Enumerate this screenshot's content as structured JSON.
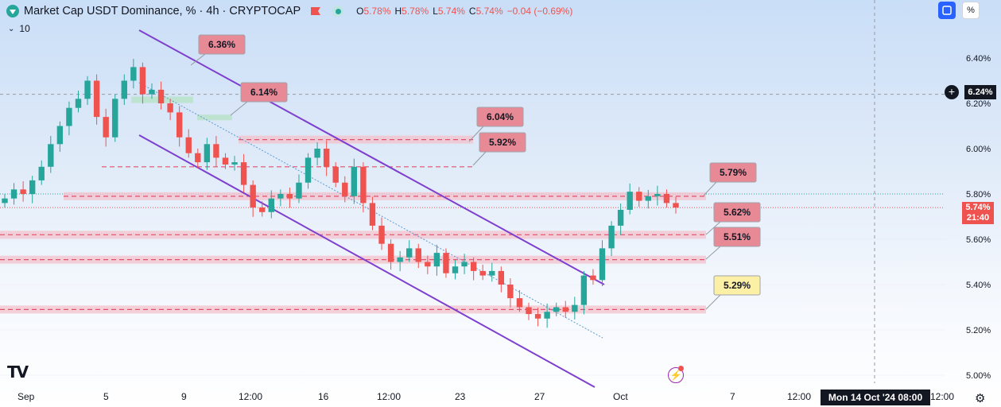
{
  "header": {
    "title": "Market Cap USDT Dominance, % · 4h · CRYPTOCAP",
    "ohlc": [
      {
        "k": "O",
        "v": "5.78%"
      },
      {
        "k": "H",
        "v": "5.78%"
      },
      {
        "k": "L",
        "v": "5.74%"
      },
      {
        "k": "C",
        "v": "5.74%"
      },
      {
        "k": "",
        "v": "−0.04 (−0.69%)"
      }
    ],
    "volume_label": "10"
  },
  "toolbar": {
    "percent_label": "%"
  },
  "icons": {
    "symbol": "tether-logo-icon",
    "flag": "flag-icon",
    "live": "live-dot-icon",
    "sync": "sync-icon",
    "settings": "gear-icon",
    "bolt": "lightning-icon"
  },
  "colors": {
    "up": "#26a69a",
    "down": "#ef5350",
    "channel": "#7e3fcf",
    "zone": "#f3c1cc",
    "zone_line": "#e0506a",
    "callout": "#e88a96",
    "callout_yellow": "#fbf0a6",
    "last_price": "#ef5350",
    "crosshair_badge": "#131722"
  },
  "crosshair": {
    "price_label": "6.24%",
    "time_label": "Mon 14 Oct '24   08:00"
  },
  "last_price": {
    "value": "5.74%",
    "countdown": "21:40"
  },
  "chart_data": {
    "type": "candlestick",
    "title": "Market Cap USDT Dominance, % · 4h · CRYPTOCAP",
    "y_unit": "%",
    "ylim": [
      4.95,
      6.58
    ],
    "y_ticks": [
      "6.40%",
      "6.20%",
      "6.00%",
      "5.80%",
      "5.60%",
      "5.40%",
      "5.20%",
      "5.00%"
    ],
    "x_ticks": [
      "Sep",
      "5",
      "9",
      "12:00",
      "16",
      "12:00",
      "23",
      "27",
      "Oct",
      "7",
      "12:00",
      "12:00"
    ],
    "series_close": [
      5.78,
      5.82,
      5.8,
      5.86,
      5.92,
      6.02,
      6.1,
      6.18,
      6.22,
      6.3,
      6.14,
      6.05,
      6.22,
      6.3,
      6.36,
      6.24,
      6.26,
      6.2,
      6.16,
      6.05,
      5.98,
      5.94,
      6.02,
      5.96,
      5.93,
      5.94,
      5.84,
      5.74,
      5.72,
      5.78,
      5.8,
      5.78,
      5.85,
      5.96,
      6.0,
      5.92,
      5.85,
      5.79,
      5.92,
      5.76,
      5.66,
      5.58,
      5.5,
      5.52,
      5.56,
      5.5,
      5.48,
      5.54,
      5.45,
      5.48,
      5.5,
      5.46,
      5.44,
      5.46,
      5.4,
      5.34,
      5.3,
      5.27,
      5.25,
      5.28,
      5.3,
      5.28,
      5.31,
      5.44,
      5.42,
      5.56,
      5.66,
      5.73,
      5.81,
      5.77,
      5.79,
      5.8,
      5.76,
      5.74
    ],
    "levels": [
      {
        "label": "6.36%",
        "value": 6.36,
        "style": "callout"
      },
      {
        "label": "6.14%",
        "value": 6.14,
        "style": "callout"
      },
      {
        "label": "6.04%",
        "value": 6.04,
        "style": "zone"
      },
      {
        "label": "5.92%",
        "value": 5.92,
        "style": "line"
      },
      {
        "label": "5.79%",
        "value": 5.79,
        "style": "zone"
      },
      {
        "label": "5.62%",
        "value": 5.62,
        "style": "zone"
      },
      {
        "label": "5.51%",
        "value": 5.51,
        "style": "zone"
      },
      {
        "label": "5.29%",
        "value": 5.29,
        "style": "zone",
        "highlight": true
      }
    ]
  }
}
